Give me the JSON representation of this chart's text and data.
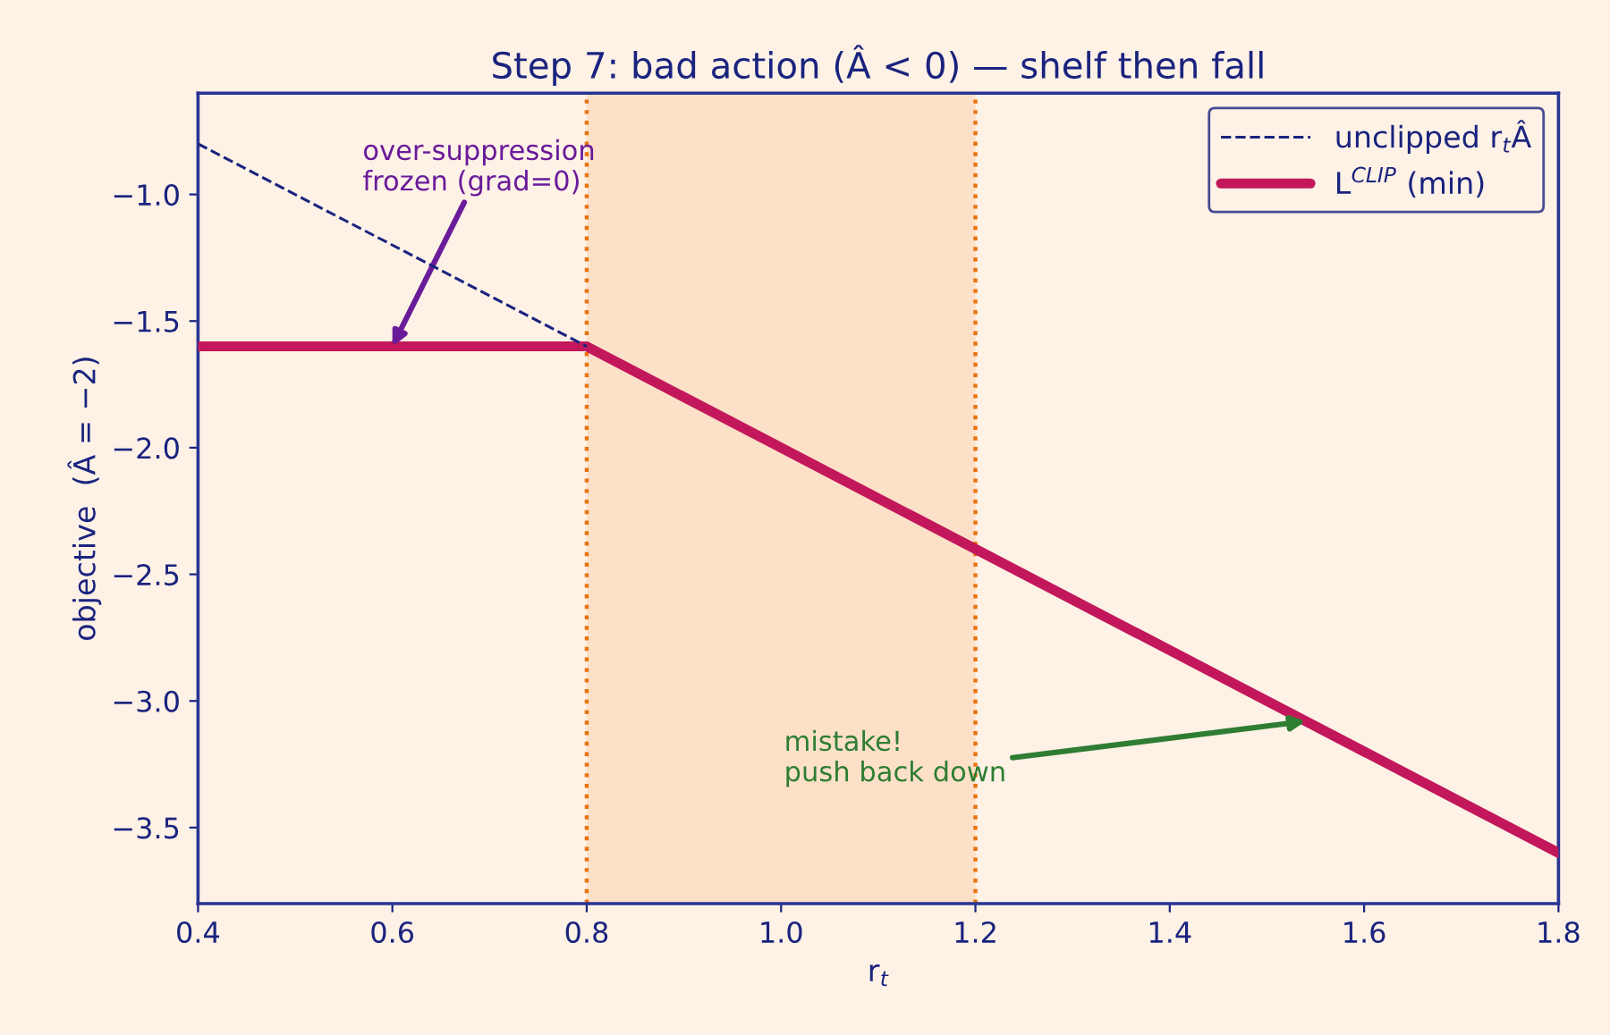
{
  "chart_data": {
    "type": "line",
    "title": "Step 7: bad action (Â < 0) — shelf then fall",
    "xlabel": "r$_{t}$",
    "ylabel": "objective  (Â = −2)",
    "series": [
      {
        "name": "unclipped r$_{t}$Â",
        "color": "#1a237e",
        "line_style": "dashed",
        "x": [
          0.4,
          0.8
        ],
        "values": [
          -0.8,
          -1.6
        ]
      },
      {
        "name": "L$^{CLIP}$ (min)",
        "color": "#c2185b",
        "line_style": "solid",
        "x": [
          0.4,
          0.8,
          1.8
        ],
        "values": [
          -1.6,
          -1.6,
          -3.6
        ]
      }
    ],
    "xlim": [
      0.4,
      1.8
    ],
    "xticks": [
      0.4,
      0.6,
      0.8,
      {
        "value": 1,
        "label": "1.0"
      },
      1.2,
      1.4,
      1.6,
      1.8
    ],
    "ylim": [
      -3.8,
      -0.6
    ],
    "yticks": [
      -3.5,
      {
        "value": -3,
        "label": "−3.0"
      },
      -2.5,
      {
        "value": -2,
        "label": "−2.0"
      },
      -1.5,
      {
        "value": -1,
        "label": "−1.0"
      }
    ],
    "bands": [
      {
        "axis": "x",
        "from": 0.8,
        "to": 1.2,
        "color": "#fde0c8"
      }
    ],
    "ref_lines": [
      {
        "axis": "x",
        "value": 0.8,
        "color": "#e8730c",
        "line_style": "dotted"
      },
      {
        "axis": "x",
        "value": 1.2,
        "color": "#e8730c",
        "line_style": "dotted"
      }
    ],
    "annotations": [
      {
        "text": "over-suppression\nfrozen (grad=0)",
        "x": 0.6,
        "y": -1.6
      },
      {
        "text": "mistake!\npush back down",
        "x": 1.54,
        "y": -3.08
      }
    ],
    "grid": false,
    "legend": "top right",
    "marker": "none"
  }
}
